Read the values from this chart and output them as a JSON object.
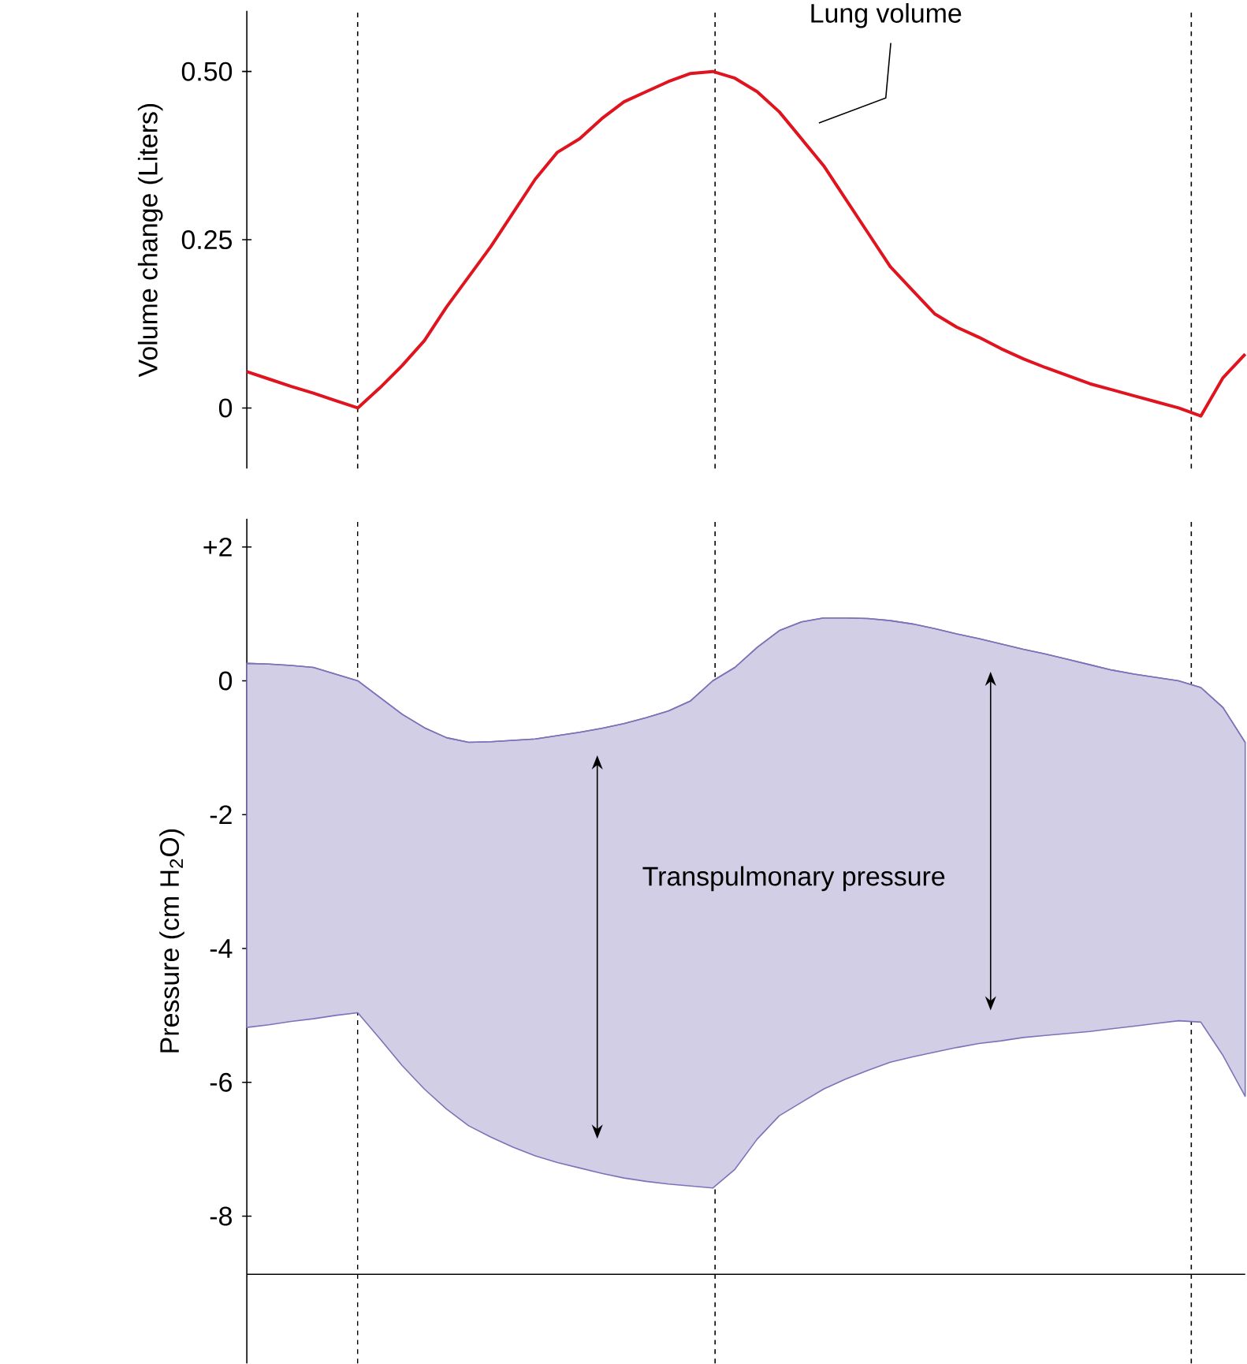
{
  "chart_data": [
    {
      "type": "line",
      "ylabel": "Volume change (Liters)",
      "categories": [
        null,
        null,
        null,
        null,
        null,
        null,
        null,
        null,
        null,
        null,
        null,
        null,
        null,
        null,
        null,
        null,
        null,
        null,
        null,
        null,
        null,
        null,
        null,
        null,
        null,
        null,
        null,
        null,
        null,
        null,
        null,
        null,
        null,
        null,
        null,
        null,
        null,
        null,
        null,
        null,
        null,
        null,
        null,
        null,
        null,
        null
      ],
      "series": [
        {
          "color": "#e0141e",
          "values": [
            0.054,
            0.043,
            0.032,
            0.022,
            0.011,
            0,
            0.03,
            0.063,
            0.1,
            0.15,
            0.195,
            0.24,
            0.29,
            0.34,
            0.38,
            0.4,
            0.43,
            0.455,
            0.47,
            0.485,
            0.497,
            0.5,
            0.49,
            0.47,
            0.44,
            0.4,
            0.36,
            0.31,
            0.26,
            0.21,
            0.175,
            0.14,
            0.12,
            0.105,
            0.088,
            0.073,
            0.06,
            0.048,
            0.036,
            0.027,
            0.018,
            0.009,
            0,
            -0.012,
            0.045,
            0.08
          ]
        }
      ],
      "ylim": [
        -0.09,
        0.59
      ],
      "yticks": [
        0,
        0.25,
        {
          "value": 0.5,
          "label": "0.50"
        }
      ],
      "tick_labels": "y",
      "grid": "x",
      "annotations": [
        "Lung volume"
      ]
    },
    {
      "type": "line",
      "grid": "x",
      "ylabel": "Pressure (cm H$_{2}$O)",
      "categories": [
        null,
        null,
        null,
        null,
        null,
        null,
        null,
        null,
        null,
        null,
        null,
        null,
        null,
        null,
        null,
        null,
        null,
        null,
        null,
        null,
        null,
        null,
        null,
        null,
        null,
        null,
        null,
        null,
        null,
        null,
        null,
        null,
        null,
        null,
        null,
        null,
        null,
        null,
        null,
        null,
        null,
        null,
        null,
        null,
        null,
        null
      ],
      "series": [
        {
          "color": "#7b74b8",
          "values": [
            0.26,
            0.25,
            0.23,
            0.2,
            0.1,
            0,
            -0.25,
            -0.5,
            -0.7,
            -0.85,
            -0.92,
            -0.91,
            -0.89,
            -0.87,
            -0.82,
            -0.77,
            -0.71,
            -0.64,
            -0.55,
            -0.45,
            -0.3,
            0,
            0.2,
            0.5,
            0.75,
            0.88,
            0.94,
            0.94,
            0.93,
            0.9,
            0.85,
            0.78,
            0.7,
            0.63,
            0.55,
            0.47,
            0.4,
            0.32,
            0.24,
            0.16,
            0.1,
            0.05,
            0,
            -0.1,
            -0.4,
            -0.92
          ],
          "upper": [
            0.26,
            0.25,
            0.23,
            0.2,
            0.1,
            0,
            -0.25,
            -0.5,
            -0.7,
            -0.85,
            -0.92,
            -0.91,
            -0.89,
            -0.87,
            -0.82,
            -0.77,
            -0.71,
            -0.64,
            -0.55,
            -0.45,
            -0.3,
            0,
            0.2,
            0.5,
            0.75,
            0.88,
            0.94,
            0.94,
            0.93,
            0.9,
            0.85,
            0.78,
            0.7,
            0.63,
            0.55,
            0.47,
            0.4,
            0.32,
            0.24,
            0.16,
            0.1,
            0.05,
            0,
            -0.1,
            -0.4,
            -0.92
          ],
          "lower": [
            -5.18,
            -5.14,
            -5.09,
            -5.05,
            -5.0,
            -4.96,
            -5.35,
            -5.75,
            -6.1,
            -6.4,
            -6.65,
            -6.82,
            -6.97,
            -7.1,
            -7.2,
            -7.28,
            -7.36,
            -7.43,
            -7.48,
            -7.52,
            -7.55,
            -7.58,
            -7.3,
            -6.85,
            -6.5,
            -6.3,
            -6.1,
            -5.95,
            -5.82,
            -5.7,
            -5.62,
            -5.55,
            -5.48,
            -5.42,
            -5.38,
            -5.33,
            -5.3,
            -5.27,
            -5.24,
            -5.2,
            -5.16,
            -5.12,
            -5.08,
            -5.1,
            -5.6,
            -6.21
          ]
        }
      ],
      "ylim": [
        -10.2,
        2.42
      ],
      "yticks": [
        {
          "value": 2,
          "label": "+2"
        },
        0,
        -2,
        -4,
        -6,
        -8
      ],
      "tick_labels": "y",
      "ref_lines": [
        {
          "axis": "y",
          "value": -8.87,
          "line_style": "solid"
        }
      ],
      "annotations": [
        "Transpulmonary pressure"
      ]
    }
  ]
}
